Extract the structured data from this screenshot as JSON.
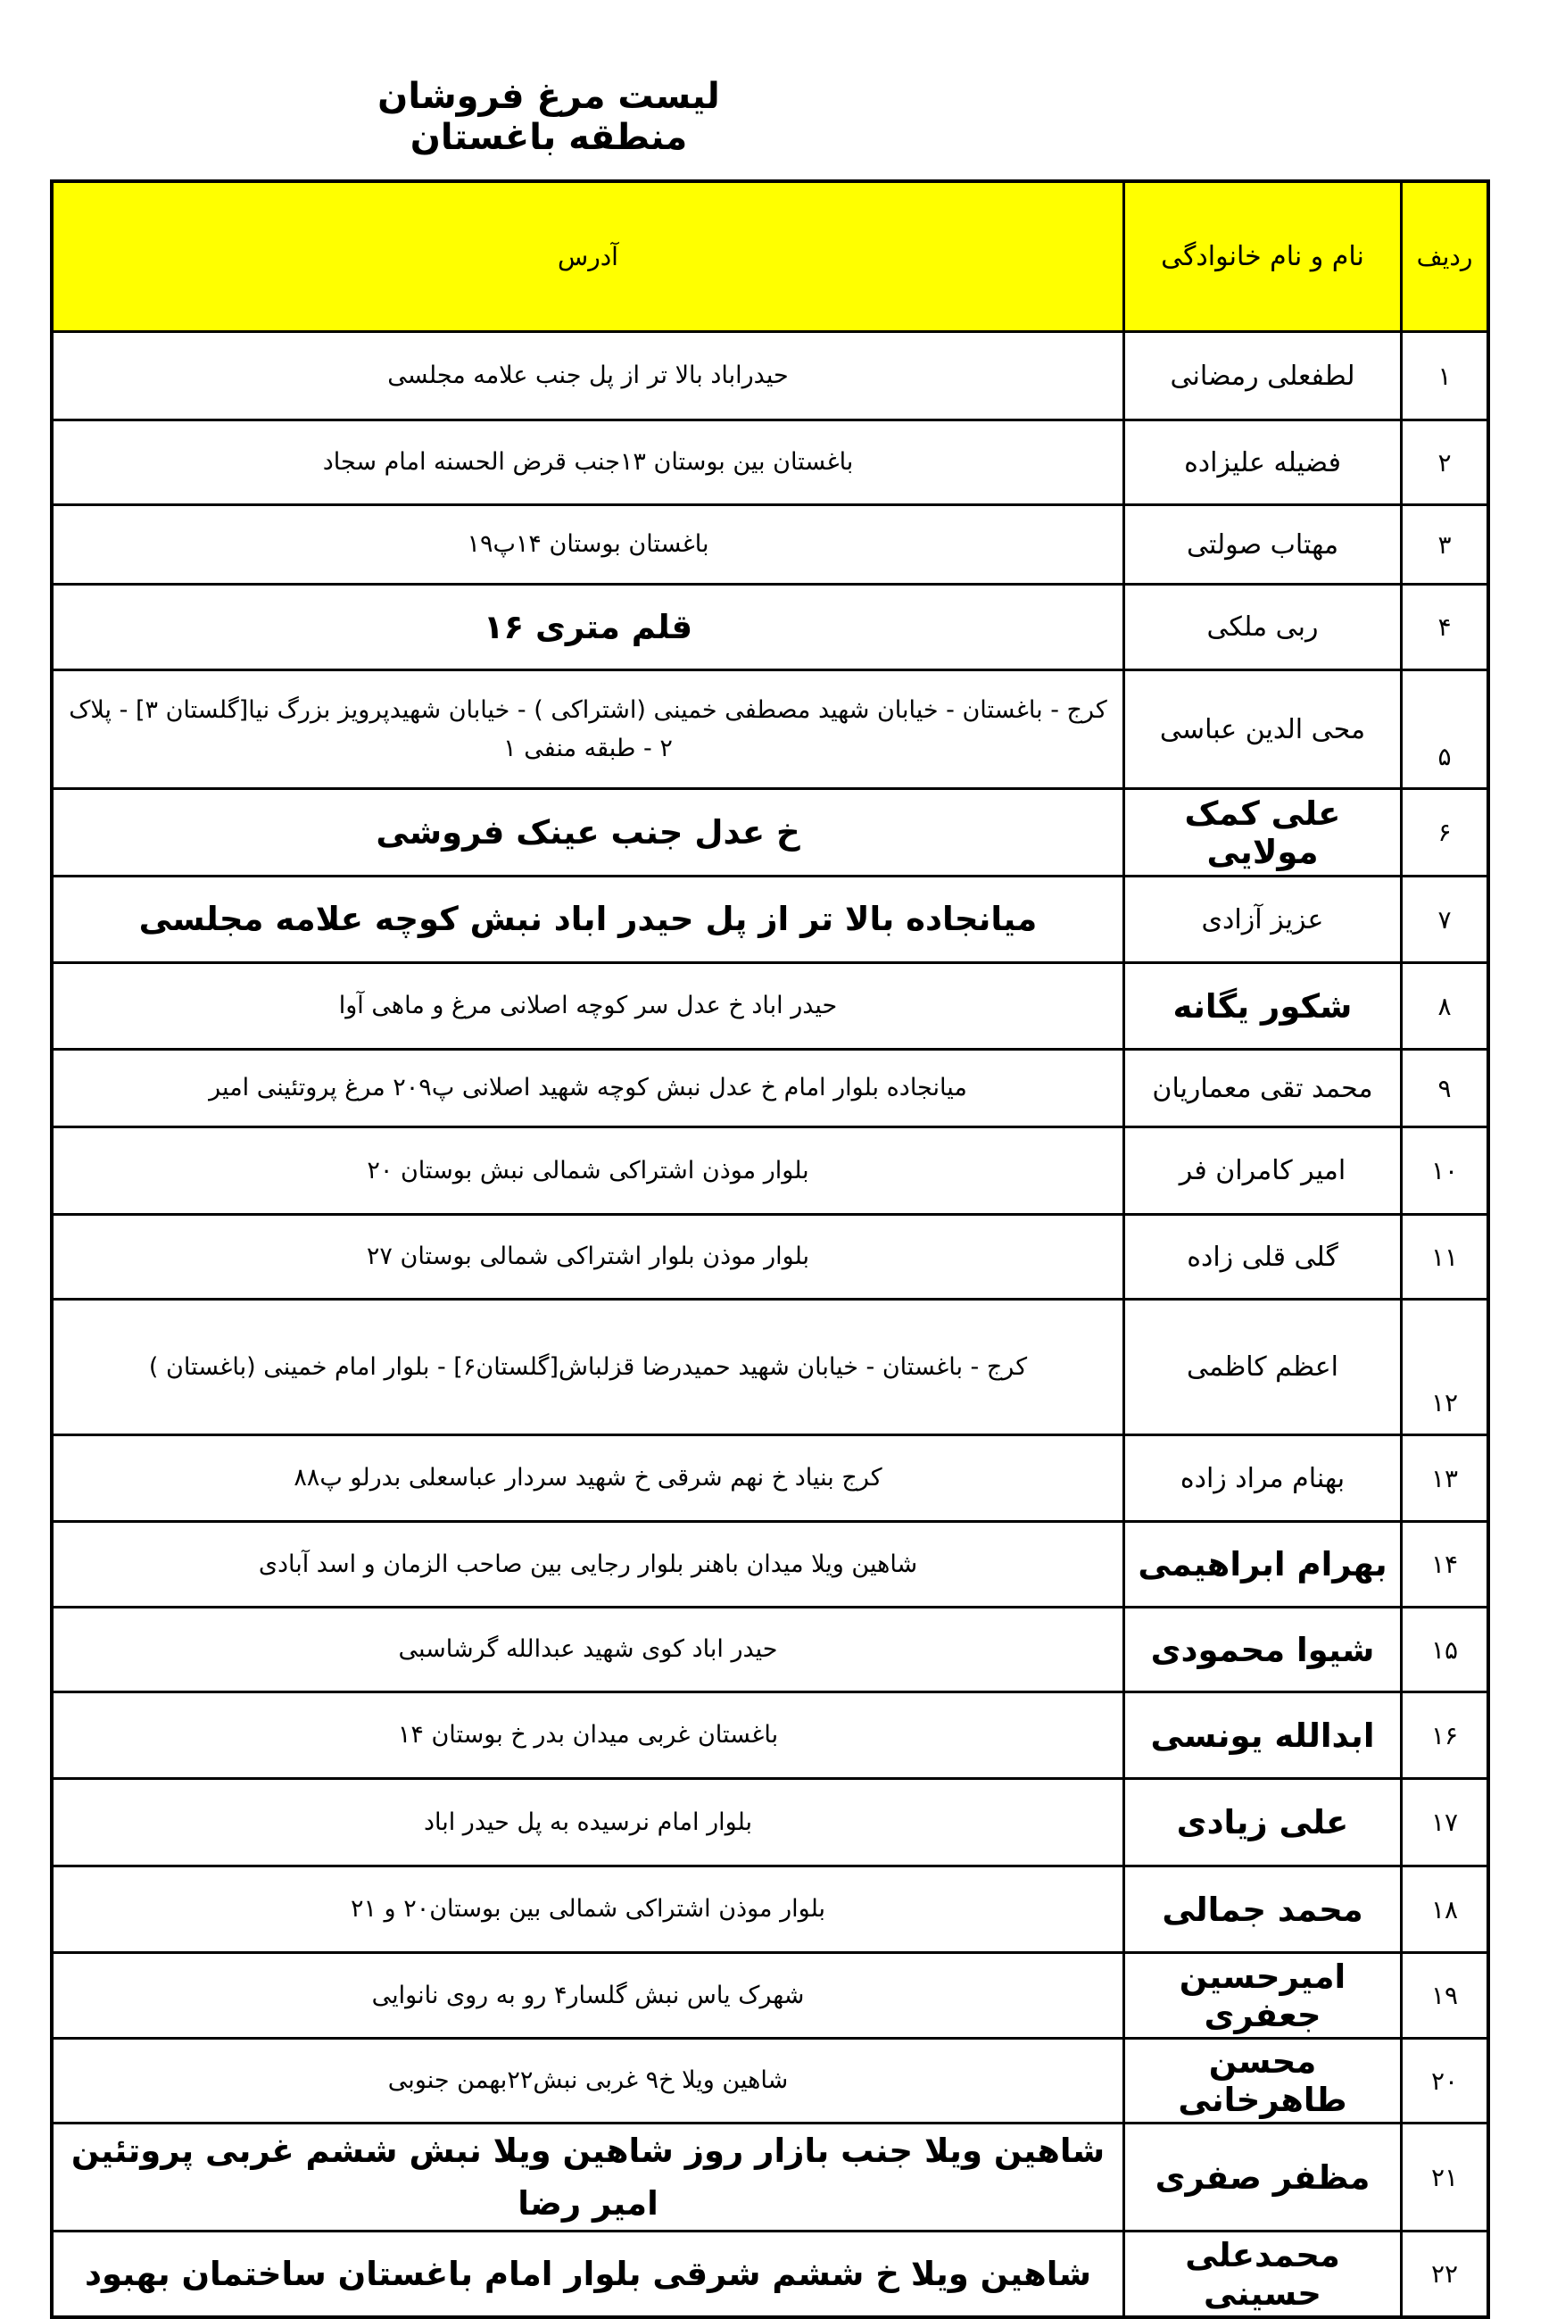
{
  "title": "لیست مرغ فروشان منطقه باغستان",
  "headers": {
    "row": "ردیف",
    "name": "نام و نام خانوادگی",
    "address": "آدرس"
  },
  "header_bg_color": "#ffff00",
  "rows": [
    {
      "num": "۱",
      "name": "لطفعلی رمضانی",
      "address": "حیدراباد بالا تر از پل جنب علامه مجلسی"
    },
    {
      "num": "۲",
      "name": "فضیله علیزاده",
      "address": "باغستان بین بوستان ۱۳جنب قرض الحسنه امام سجاد"
    },
    {
      "num": "۳",
      "name": "مهتاب صولتی",
      "address": "باغستان بوستان ۱۴پ۱۹"
    },
    {
      "num": "۴",
      "name": "ربی ملکی",
      "address": "قلم  متری ۱۶"
    },
    {
      "num": "۵",
      "name": "محی الدین عباسی",
      "address": "کرج - باغستان - خیابان شهید مصطفی خمینی (اشتراکی ) - خیابان شهیدپرویز بزرگ نیا[گلستان ۳] - پلاک ۲ - طبقه منفی ۱"
    },
    {
      "num": "۶",
      "name": "علی کمک مولایی",
      "address": "خ عدل جنب عینک فروشی"
    },
    {
      "num": "۷",
      "name": "عزیز آزادی",
      "address": "میانجاده بالا تر از پل حیدر اباد نبش کوچه علامه مجلسی"
    },
    {
      "num": "۸",
      "name": "شکور یگانه",
      "address": "حیدر اباد خ عدل سر کوچه اصلانی مرغ و ماهی آوا"
    },
    {
      "num": "۹",
      "name": "محمد تقی معماریان",
      "address": "میانجاده بلوار امام خ عدل نبش کوچه شهید اصلانی پ۲۰۹ مرغ پروتئینی امیر"
    },
    {
      "num": "۱۰",
      "name": "امیر کامران فر",
      "address": "بلوار موذن اشتراکی شمالی نبش بوستان ۲۰"
    },
    {
      "num": "۱۱",
      "name": "گلی قلی زاده",
      "address": "بلوار موذن بلوار اشتراکی شمالی بوستان ۲۷"
    },
    {
      "num": "۱۲",
      "name": "اعظم کاظمی",
      "address": "کرج - باغستان - خیابان شهید حمیدرضا قزلباش[گلستان۶] - بلوار امام خمینی (باغستان )"
    },
    {
      "num": "۱۳",
      "name": "بهنام مراد زاده",
      "address": "کرج بنیاد خ نهم شرقی خ شهید سردار عباسعلی بدرلو پ۸۸"
    },
    {
      "num": "۱۴",
      "name": "بهرام ابراهیمی",
      "address": "شاهین ویلا میدان باهنر  بلوار رجایی بین صاحب الزمان و اسد آبادی"
    },
    {
      "num": "۱۵",
      "name": "شیوا محمودی",
      "address": "حیدر اباد کوی شهید عبدالله گرشاسبی"
    },
    {
      "num": "۱۶",
      "name": "ابدالله یونسی",
      "address": "باغستان غربی میدان بدر خ بوستان ۱۴"
    },
    {
      "num": "۱۷",
      "name": "علی زیادی",
      "address": "بلوار امام نرسیده به پل حیدر اباد"
    },
    {
      "num": "۱۸",
      "name": "محمد جمالی",
      "address": "بلوار موذن اشتراکی شمالی بین بوستان۲۰ و ۲۱"
    },
    {
      "num": "۱۹",
      "name": "امیرحسین جعفری",
      "address": "شهرک یاس نبش گلسار۴ رو به روی نانوایی"
    },
    {
      "num": "۲۰",
      "name": "محسن طاهرخانی",
      "address": "شاهین ویلا خ۹ غربی نبش۲۲بهمن جنوبی"
    },
    {
      "num": "۲۱",
      "name": "مظفر صفری",
      "address": "شاهین ویلا جنب بازار روز شاهین ویلا نبش ششم غربی پروتئین امیر رضا"
    },
    {
      "num": "۲۲",
      "name": "محمدعلی حسینی",
      "address": "شاهین ویلا خ ششم شرقی بلوار امام باغستان ساختمان بهبود"
    }
  ]
}
